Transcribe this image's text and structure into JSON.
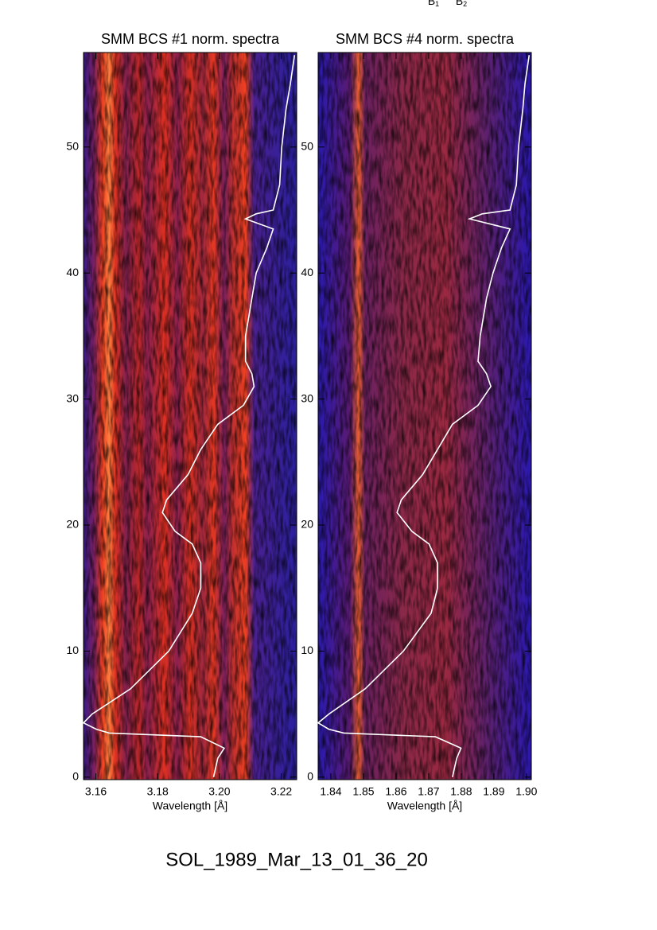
{
  "figure_title": "SOL_1989_Mar_13_01_36_20",
  "annotations": [
    {
      "text": "B",
      "sub": "1"
    },
    {
      "text": "B",
      "sub": "2"
    }
  ],
  "chart_data": [
    {
      "type": "spectrogram",
      "title": "SMM BCS #1 norm. spectra",
      "xlabel": "Wavelength [Å]",
      "xlim": [
        3.156,
        3.225
      ],
      "xticks": [
        3.16,
        3.18,
        {
          "value": 3.2,
          "label": "3.20"
        },
        3.22
      ],
      "ylim": [
        -0.2,
        57.5
      ],
      "yticks": [
        0,
        10,
        20,
        30,
        40,
        50
      ],
      "curve": {
        "color": "#ffffff",
        "x": [
          0.61,
          0.63,
          0.66,
          0.55,
          0.12,
          0.06,
          0.0,
          0.04,
          0.22,
          0.4,
          0.51,
          0.55,
          0.55,
          0.51,
          0.43,
          0.37,
          0.39,
          0.49,
          0.55,
          0.63,
          0.75,
          0.8,
          0.79,
          0.76,
          0.76,
          0.79,
          0.81,
          0.86,
          0.89,
          0.76,
          0.81,
          0.89,
          0.92,
          0.93,
          0.95,
          0.97,
          0.99
        ],
        "y": [
          0,
          1.5,
          2.3,
          3.2,
          3.5,
          3.8,
          4.3,
          5,
          7,
          10,
          13,
          15,
          17,
          18.5,
          19.5,
          21,
          22,
          24,
          26,
          28,
          29.5,
          31,
          32,
          33,
          35,
          38,
          40,
          42,
          43.5,
          44.3,
          44.7,
          45,
          47,
          50,
          53,
          55,
          57.3
        ]
      }
    },
    {
      "type": "spectrogram",
      "title": "SMM BCS #4 norm. spectra",
      "xlabel": "Wavelength [Å]",
      "xlim": [
        1.8361,
        1.9015
      ],
      "xticks": [
        1.84,
        1.85,
        1.86,
        1.87,
        1.88,
        1.89,
        {
          "value": 1.9,
          "label": "1.90"
        }
      ],
      "ylim": [
        -0.2,
        57.5
      ],
      "yticks": [
        0,
        10,
        20,
        30,
        40,
        50
      ],
      "curve": {
        "color": "#ffffff",
        "x": [
          0.63,
          0.65,
          0.67,
          0.55,
          0.12,
          0.05,
          0.0,
          0.05,
          0.22,
          0.4,
          0.53,
          0.56,
          0.56,
          0.52,
          0.44,
          0.37,
          0.39,
          0.49,
          0.56,
          0.63,
          0.75,
          0.81,
          0.79,
          0.75,
          0.76,
          0.79,
          0.82,
          0.86,
          0.9,
          0.71,
          0.77,
          0.9,
          0.93,
          0.94,
          0.96,
          0.97,
          0.99
        ],
        "y": [
          0,
          1.5,
          2.3,
          3.2,
          3.5,
          3.8,
          4.3,
          5,
          7,
          10,
          13,
          15,
          17,
          18.5,
          19.5,
          21,
          22,
          24,
          26,
          28,
          29.5,
          31,
          32,
          33,
          35,
          38,
          40,
          42,
          43.5,
          44.3,
          44.7,
          45,
          47,
          50,
          53,
          55,
          57.3
        ]
      }
    }
  ]
}
